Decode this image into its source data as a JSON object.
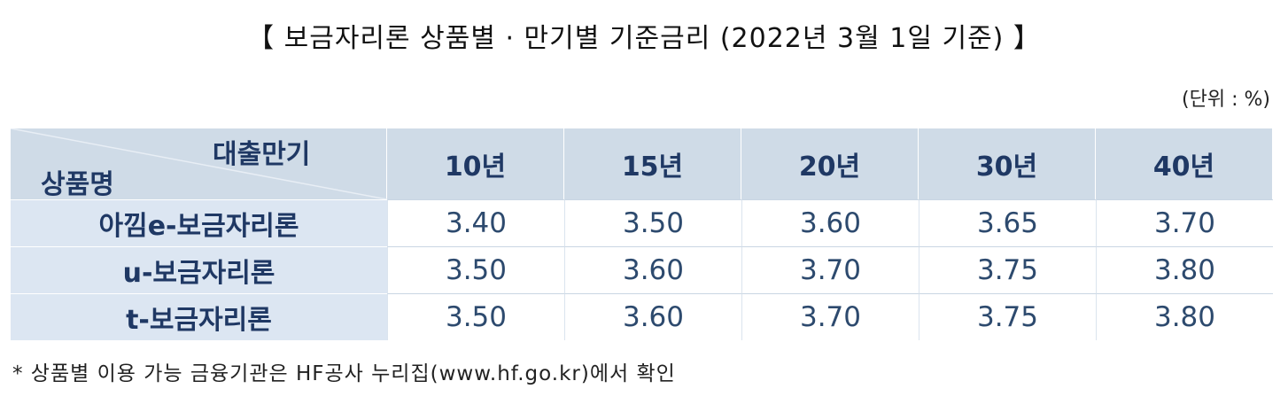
{
  "title": "【 보금자리론 상품별 · 만기별 기준금리 (2022년 3월 1일 기준) 】",
  "unit": "(단위 : %)",
  "table": {
    "corner_top": "대출만기",
    "corner_bottom": "상품명",
    "columns": [
      "10년",
      "15년",
      "20년",
      "30년",
      "40년"
    ],
    "rows": [
      {
        "label": "아낌e-보금자리론",
        "values": [
          "3.40",
          "3.50",
          "3.60",
          "3.65",
          "3.70"
        ]
      },
      {
        "label": "u-보금자리론",
        "values": [
          "3.50",
          "3.60",
          "3.70",
          "3.75",
          "3.80"
        ]
      },
      {
        "label": "t-보금자리론",
        "values": [
          "3.50",
          "3.60",
          "3.70",
          "3.75",
          "3.80"
        ]
      }
    ]
  },
  "footnote": "* 상품별 이용 가능 금융기관은 HF공사 누리집(www.hf.go.kr)에서 확인"
}
